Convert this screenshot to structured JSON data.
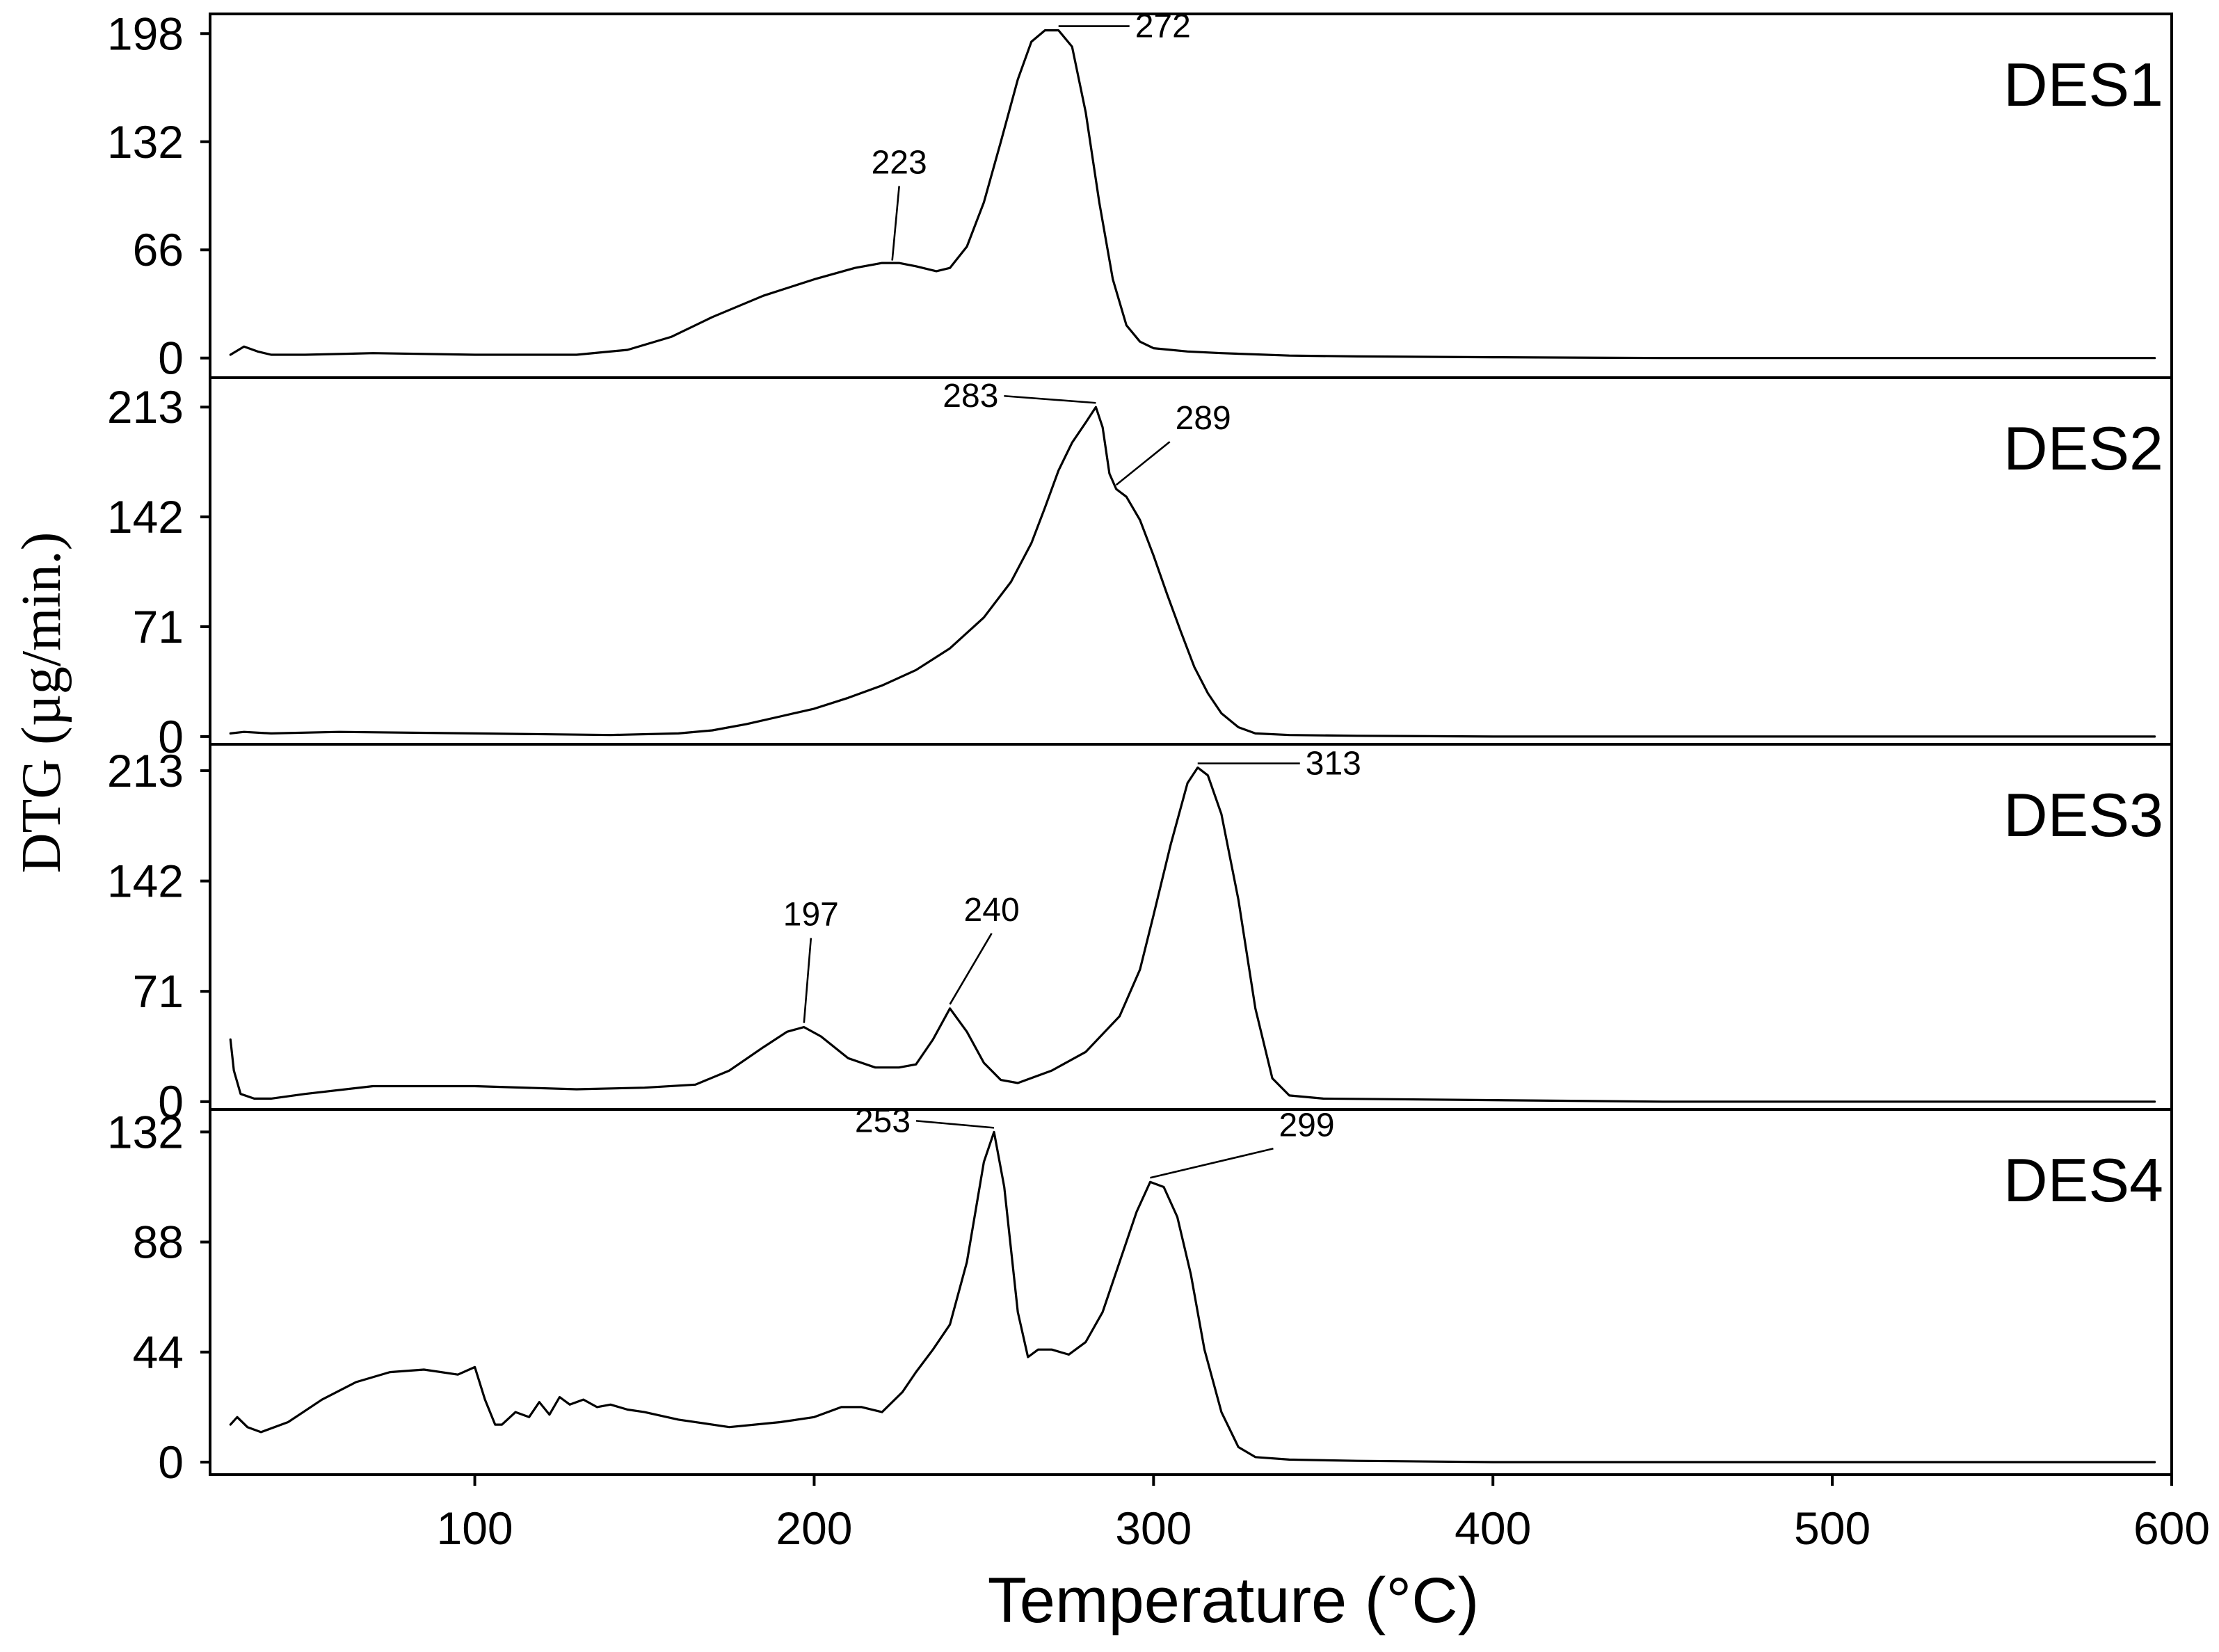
{
  "chart_data": {
    "type": "line",
    "xlabel": "Temperature (°C)",
    "ylabel": "DTG (µg/min.)",
    "xlim": [
      22,
      600
    ],
    "x_ticks": [
      100,
      200,
      300,
      400,
      500,
      600
    ],
    "x_tick_labels": [
      "100",
      "200",
      "300",
      "400",
      "500",
      "600"
    ],
    "grid": false,
    "panels": [
      {
        "label": "DES1",
        "ylim": [
          -12,
          210
        ],
        "y_ticks": [
          0,
          66,
          132,
          198
        ],
        "y_tick_labels": [
          "0",
          "66",
          "132",
          "198"
        ],
        "peaks": [
          {
            "label": "223",
            "x": 223,
            "y": 57
          },
          {
            "label": "272",
            "x": 272,
            "y": 200
          }
        ],
        "series": [
          {
            "x": [
              28,
              32,
              36,
              40,
              50,
              70,
              100,
              130,
              145,
              158,
              170,
              185,
              200,
              212,
              220,
              225,
              230,
              236,
              240,
              245,
              250,
              255,
              260,
              264,
              268,
              272,
              276,
              280,
              284,
              288,
              292,
              296,
              300,
              310,
              320,
              340,
              360,
              400,
              450,
              500,
              550,
              595
            ],
            "y": [
              2,
              7,
              4,
              2,
              2,
              3,
              2,
              2,
              5,
              13,
              25,
              38,
              48,
              55,
              58,
              58,
              56,
              53,
              55,
              68,
              95,
              132,
              170,
              193,
              200,
              200,
              190,
              150,
              95,
              48,
              20,
              10,
              6,
              4,
              3,
              1.5,
              1,
              0.5,
              0,
              0,
              0,
              0
            ]
          }
        ]
      },
      {
        "label": "DES2",
        "ylim": [
          -5,
          232
        ],
        "y_ticks": [
          0,
          71,
          142,
          213
        ],
        "y_tick_labels": [
          "0",
          "71",
          "142",
          "213"
        ],
        "peaks": [
          {
            "label": "283",
            "x": 283,
            "y": 213
          },
          {
            "label": "289",
            "x": 289,
            "y": 160
          }
        ],
        "series": [
          {
            "x": [
              28,
              32,
              40,
              60,
              100,
              140,
              160,
              170,
              180,
              190,
              200,
              210,
              220,
              230,
              240,
              250,
              258,
              264,
              268,
              272,
              276,
              280,
              283,
              285,
              287,
              289,
              292,
              296,
              300,
              304,
              308,
              312,
              316,
              320,
              325,
              330,
              340,
              360,
              400,
              450,
              500,
              550,
              595
            ],
            "y": [
              2,
              3,
              2,
              3,
              2,
              1,
              2,
              4,
              8,
              13,
              18,
              25,
              33,
              43,
              57,
              77,
              100,
              125,
              148,
              172,
              190,
              203,
              213,
              200,
              170,
              160,
              155,
              140,
              117,
              92,
              68,
              45,
              28,
              15,
              6,
              2,
              1,
              0.5,
              0,
              0,
              0,
              0,
              0
            ]
          }
        ]
      },
      {
        "label": "DES3",
        "ylim": [
          -5,
          230
        ],
        "y_ticks": [
          0,
          71,
          142,
          213
        ],
        "y_tick_labels": [
          "0",
          "71",
          "142",
          "213"
        ],
        "peaks": [
          {
            "label": "197",
            "x": 197,
            "y": 48
          },
          {
            "label": "240",
            "x": 240,
            "y": 60
          },
          {
            "label": "313",
            "x": 313,
            "y": 215
          }
        ],
        "series": [
          {
            "x": [
              28,
              29,
              31,
              35,
              40,
              50,
              70,
              100,
              130,
              150,
              165,
              175,
              185,
              192,
              197,
              202,
              210,
              218,
              225,
              230,
              235,
              240,
              245,
              250,
              255,
              260,
              270,
              280,
              290,
              296,
              300,
              305,
              310,
              313,
              316,
              320,
              325,
              330,
              335,
              340,
              350,
              400,
              450,
              500,
              550,
              595
            ],
            "y": [
              40,
              20,
              5,
              2,
              2,
              5,
              10,
              10,
              8,
              9,
              11,
              20,
              35,
              45,
              48,
              42,
              28,
              22,
              22,
              24,
              40,
              60,
              45,
              25,
              14,
              12,
              20,
              32,
              55,
              85,
              120,
              165,
              205,
              215,
              210,
              185,
              130,
              60,
              15,
              4,
              2,
              1,
              0,
              0,
              0,
              0
            ]
          }
        ]
      },
      {
        "label": "DES4",
        "ylim": [
          -5,
          141
        ],
        "y_ticks": [
          0,
          44,
          88,
          132
        ],
        "y_tick_labels": [
          "0",
          "44",
          "88",
          "132"
        ],
        "peaks": [
          {
            "label": "253",
            "x": 253,
            "y": 132
          },
          {
            "label": "299",
            "x": 299,
            "y": 112
          }
        ],
        "series": [
          {
            "x": [
              28,
              30,
              33,
              37,
              45,
              55,
              65,
              75,
              85,
              95,
              100,
              103,
              106,
              108,
              112,
              116,
              119,
              122,
              125,
              128,
              132,
              136,
              140,
              145,
              150,
              160,
              175,
              190,
              200,
              208,
              214,
              220,
              226,
              230,
              235,
              240,
              245,
              250,
              253,
              256,
              260,
              263,
              266,
              270,
              275,
              280,
              285,
              290,
              295,
              299,
              303,
              307,
              311,
              315,
              320,
              325,
              330,
              340,
              360,
              400,
              450,
              500,
              550,
              595
            ],
            "y": [
              15,
              18,
              14,
              12,
              16,
              25,
              32,
              36,
              37,
              35,
              38,
              25,
              15,
              15,
              20,
              18,
              24,
              19,
              26,
              23,
              25,
              22,
              23,
              21,
              20,
              17,
              14,
              16,
              18,
              22,
              22,
              20,
              28,
              36,
              45,
              55,
              80,
              120,
              132,
              110,
              60,
              42,
              45,
              45,
              43,
              48,
              60,
              80,
              100,
              112,
              110,
              98,
              75,
              45,
              20,
              6,
              2,
              1,
              0.5,
              0,
              0,
              0,
              0,
              0
            ]
          }
        ]
      }
    ]
  }
}
